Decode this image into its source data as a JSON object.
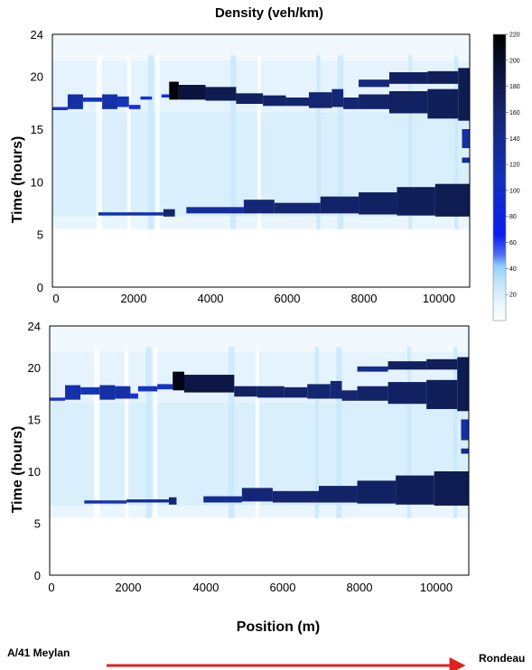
{
  "chart_data": [
    {
      "type": "heatmap",
      "title": "Density (veh/km)",
      "xlabel": "",
      "ylabel": "Time (hours)",
      "xlim": [
        0,
        10900
      ],
      "ylim": [
        0,
        24
      ],
      "xticks": [
        0,
        2000,
        4000,
        6000,
        8000,
        10000
      ],
      "yticks": [
        0,
        5,
        10,
        15,
        20,
        24
      ],
      "colorbar": {
        "min": 0,
        "max": 220,
        "ticks": [
          20,
          40,
          60,
          80,
          100,
          120,
          140,
          160,
          180,
          200,
          220
        ]
      },
      "congestion_bands": [
        {
          "x0": 0,
          "x1": 400,
          "t0": 16.8,
          "t1": 17.1,
          "v": 80
        },
        {
          "x0": 400,
          "x1": 800,
          "t0": 16.9,
          "t1": 18.3,
          "v": 115
        },
        {
          "x0": 800,
          "x1": 1300,
          "t0": 17.6,
          "t1": 18.0,
          "v": 95
        },
        {
          "x0": 1300,
          "x1": 1700,
          "t0": 16.9,
          "t1": 18.3,
          "v": 110
        },
        {
          "x0": 1700,
          "x1": 2000,
          "t0": 17.1,
          "t1": 18.1,
          "v": 100
        },
        {
          "x0": 2000,
          "x1": 2300,
          "t0": 16.9,
          "t1": 17.3,
          "v": 65
        },
        {
          "x0": 2300,
          "x1": 2600,
          "t0": 17.8,
          "t1": 18.1,
          "v": 80
        },
        {
          "x0": 2850,
          "x1": 3050,
          "t0": 18.0,
          "t1": 18.3,
          "v": 70
        },
        {
          "x0": 3050,
          "x1": 3300,
          "t0": 17.8,
          "t1": 19.5,
          "v": 215
        },
        {
          "x0": 3300,
          "x1": 4000,
          "t0": 17.8,
          "t1": 19.2,
          "v": 185
        },
        {
          "x0": 4000,
          "x1": 4800,
          "t0": 17.7,
          "t1": 19.0,
          "v": 170
        },
        {
          "x0": 4800,
          "x1": 5500,
          "t0": 17.4,
          "t1": 18.4,
          "v": 160
        },
        {
          "x0": 5500,
          "x1": 6100,
          "t0": 17.2,
          "t1": 18.2,
          "v": 155
        },
        {
          "x0": 6100,
          "x1": 6700,
          "t0": 17.2,
          "t1": 18.0,
          "v": 150
        },
        {
          "x0": 6700,
          "x1": 7300,
          "t0": 17.0,
          "t1": 18.5,
          "v": 150
        },
        {
          "x0": 7300,
          "x1": 7600,
          "t0": 17.1,
          "t1": 18.8,
          "v": 145
        },
        {
          "x0": 7600,
          "x1": 8000,
          "t0": 16.9,
          "t1": 18.0,
          "v": 150
        },
        {
          "x0": 8000,
          "x1": 8800,
          "t0": 16.9,
          "t1": 18.3,
          "v": 155
        },
        {
          "x0": 8000,
          "x1": 8800,
          "t0": 19.0,
          "t1": 19.7,
          "v": 140
        },
        {
          "x0": 8800,
          "x1": 9800,
          "t0": 16.5,
          "t1": 18.6,
          "v": 160
        },
        {
          "x0": 8800,
          "x1": 9800,
          "t0": 19.3,
          "t1": 20.4,
          "v": 160
        },
        {
          "x0": 9800,
          "x1": 10600,
          "t0": 16.0,
          "t1": 18.8,
          "v": 165
        },
        {
          "x0": 9800,
          "x1": 10600,
          "t0": 19.3,
          "t1": 20.5,
          "v": 165
        },
        {
          "x0": 10600,
          "x1": 10900,
          "t0": 15.8,
          "t1": 20.8,
          "v": 170
        },
        {
          "x0": 1200,
          "x1": 2900,
          "t0": 6.8,
          "t1": 7.1,
          "v": 110
        },
        {
          "x0": 2900,
          "x1": 3200,
          "t0": 6.7,
          "t1": 7.4,
          "v": 150
        },
        {
          "x0": 3500,
          "x1": 5000,
          "t0": 7.0,
          "t1": 7.6,
          "v": 120
        },
        {
          "x0": 5000,
          "x1": 5800,
          "t0": 7.0,
          "t1": 8.3,
          "v": 145
        },
        {
          "x0": 5800,
          "x1": 7000,
          "t0": 7.0,
          "t1": 8.0,
          "v": 150
        },
        {
          "x0": 7000,
          "x1": 8000,
          "t0": 7.0,
          "t1": 8.6,
          "v": 155
        },
        {
          "x0": 8000,
          "x1": 9000,
          "t0": 6.9,
          "t1": 9.0,
          "v": 160
        },
        {
          "x0": 9000,
          "x1": 10000,
          "t0": 6.8,
          "t1": 9.5,
          "v": 165
        },
        {
          "x0": 10000,
          "x1": 10900,
          "t0": 6.7,
          "t1": 9.8,
          "v": 170
        },
        {
          "x0": 10700,
          "x1": 10900,
          "t0": 11.8,
          "t1": 12.3,
          "v": 130
        },
        {
          "x0": 10700,
          "x1": 10900,
          "t0": 13.2,
          "t1": 15.0,
          "v": 115
        }
      ]
    },
    {
      "type": "heatmap",
      "title": "",
      "xlabel": "Position (m)",
      "ylabel": "Time (hours)",
      "xlim": [
        0,
        10900
      ],
      "ylim": [
        0,
        24
      ],
      "xticks": [
        0,
        2000,
        4000,
        6000,
        8000,
        10000
      ],
      "yticks": [
        0,
        5,
        10,
        15,
        20,
        24
      ],
      "congestion_bands": [
        {
          "x0": 0,
          "x1": 400,
          "t0": 16.8,
          "t1": 17.1,
          "v": 80
        },
        {
          "x0": 400,
          "x1": 800,
          "t0": 16.9,
          "t1": 18.3,
          "v": 110
        },
        {
          "x0": 800,
          "x1": 1300,
          "t0": 17.4,
          "t1": 18.1,
          "v": 100
        },
        {
          "x0": 1300,
          "x1": 1700,
          "t0": 16.9,
          "t1": 18.3,
          "v": 115
        },
        {
          "x0": 1700,
          "x1": 2100,
          "t0": 17.0,
          "t1": 18.2,
          "v": 110
        },
        {
          "x0": 2100,
          "x1": 2300,
          "t0": 17.0,
          "t1": 17.5,
          "v": 70
        },
        {
          "x0": 2300,
          "x1": 2800,
          "t0": 17.7,
          "t1": 18.2,
          "v": 95
        },
        {
          "x0": 2800,
          "x1": 3200,
          "t0": 17.9,
          "t1": 18.4,
          "v": 90
        },
        {
          "x0": 3200,
          "x1": 3500,
          "t0": 17.8,
          "t1": 19.6,
          "v": 210
        },
        {
          "x0": 3500,
          "x1": 4800,
          "t0": 17.6,
          "t1": 19.3,
          "v": 180
        },
        {
          "x0": 4800,
          "x1": 5400,
          "t0": 17.2,
          "t1": 18.2,
          "v": 160
        },
        {
          "x0": 5400,
          "x1": 6100,
          "t0": 17.1,
          "t1": 18.2,
          "v": 155
        },
        {
          "x0": 6100,
          "x1": 6700,
          "t0": 17.1,
          "t1": 18.1,
          "v": 155
        },
        {
          "x0": 6700,
          "x1": 7300,
          "t0": 17.0,
          "t1": 18.4,
          "v": 150
        },
        {
          "x0": 7300,
          "x1": 7600,
          "t0": 17.0,
          "t1": 18.7,
          "v": 145
        },
        {
          "x0": 7600,
          "x1": 8000,
          "t0": 16.8,
          "t1": 17.8,
          "v": 150
        },
        {
          "x0": 8000,
          "x1": 8800,
          "t0": 16.8,
          "t1": 18.2,
          "v": 155
        },
        {
          "x0": 8000,
          "x1": 8800,
          "t0": 19.6,
          "t1": 20.1,
          "v": 130
        },
        {
          "x0": 8800,
          "x1": 9800,
          "t0": 16.5,
          "t1": 18.6,
          "v": 160
        },
        {
          "x0": 8800,
          "x1": 9800,
          "t0": 19.8,
          "t1": 20.6,
          "v": 160
        },
        {
          "x0": 9800,
          "x1": 10600,
          "t0": 16.0,
          "t1": 18.8,
          "v": 165
        },
        {
          "x0": 9800,
          "x1": 10600,
          "t0": 19.8,
          "t1": 20.8,
          "v": 165
        },
        {
          "x0": 10600,
          "x1": 10900,
          "t0": 15.8,
          "t1": 21.0,
          "v": 170
        },
        {
          "x0": 900,
          "x1": 2000,
          "t0": 6.9,
          "t1": 7.2,
          "v": 110
        },
        {
          "x0": 2000,
          "x1": 3100,
          "t0": 7.0,
          "t1": 7.3,
          "v": 120
        },
        {
          "x0": 3100,
          "x1": 3300,
          "t0": 6.8,
          "t1": 7.5,
          "v": 150
        },
        {
          "x0": 4000,
          "x1": 5000,
          "t0": 7.0,
          "t1": 7.6,
          "v": 125
        },
        {
          "x0": 5000,
          "x1": 5800,
          "t0": 7.1,
          "t1": 8.4,
          "v": 145
        },
        {
          "x0": 5800,
          "x1": 7000,
          "t0": 7.0,
          "t1": 8.1,
          "v": 150
        },
        {
          "x0": 7000,
          "x1": 8000,
          "t0": 7.0,
          "t1": 8.6,
          "v": 155
        },
        {
          "x0": 8000,
          "x1": 9000,
          "t0": 6.9,
          "t1": 9.1,
          "v": 160
        },
        {
          "x0": 9000,
          "x1": 10000,
          "t0": 6.8,
          "t1": 9.6,
          "v": 165
        },
        {
          "x0": 10000,
          "x1": 10900,
          "t0": 6.7,
          "t1": 10.0,
          "v": 170
        },
        {
          "x0": 10700,
          "x1": 10900,
          "t0": 11.7,
          "t1": 12.2,
          "v": 130
        },
        {
          "x0": 10700,
          "x1": 10900,
          "t0": 13.0,
          "t1": 15.0,
          "v": 115
        }
      ]
    }
  ],
  "route": {
    "start": "A/41 Meylan",
    "end": "Rondeau",
    "arrow_color": "#e0201c"
  },
  "colors": {
    "low": "#ffffff",
    "light": "#cfe9fa",
    "mid": "#2b38d6",
    "high": "#102a78",
    "max": "#000000",
    "axis": "#000000"
  }
}
